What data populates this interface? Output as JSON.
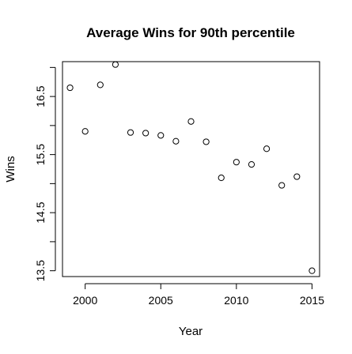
{
  "chart_data": {
    "type": "scatter",
    "title": "Average Wins for 90th percentile",
    "xlabel": "Year",
    "ylabel": "Wins",
    "xlim": [
      1998.5,
      2015.5
    ],
    "ylim": [
      13.4,
      17.1
    ],
    "x_ticks": [
      2000,
      2005,
      2010,
      2015
    ],
    "y_ticks": [
      13.5,
      14,
      14.5,
      15,
      15.5,
      16,
      16.5,
      17
    ],
    "y_tick_labels": [
      "13.5",
      "",
      "14.5",
      "",
      "15.5",
      "",
      "16.5",
      ""
    ],
    "grid": false,
    "legend": "none",
    "marker": "open-circle",
    "points": [
      {
        "x": 1999,
        "y": 16.65
      },
      {
        "x": 2000,
        "y": 15.9
      },
      {
        "x": 2001,
        "y": 16.7
      },
      {
        "x": 2002,
        "y": 17.05
      },
      {
        "x": 2003,
        "y": 15.88
      },
      {
        "x": 2004,
        "y": 15.87
      },
      {
        "x": 2005,
        "y": 15.83
      },
      {
        "x": 2006,
        "y": 15.73
      },
      {
        "x": 2007,
        "y": 16.07
      },
      {
        "x": 2008,
        "y": 15.72
      },
      {
        "x": 2009,
        "y": 15.1
      },
      {
        "x": 2010,
        "y": 15.37
      },
      {
        "x": 2011,
        "y": 15.33
      },
      {
        "x": 2012,
        "y": 15.6
      },
      {
        "x": 2013,
        "y": 14.97
      },
      {
        "x": 2014,
        "y": 15.12
      },
      {
        "x": 2015,
        "y": 13.5
      }
    ]
  }
}
